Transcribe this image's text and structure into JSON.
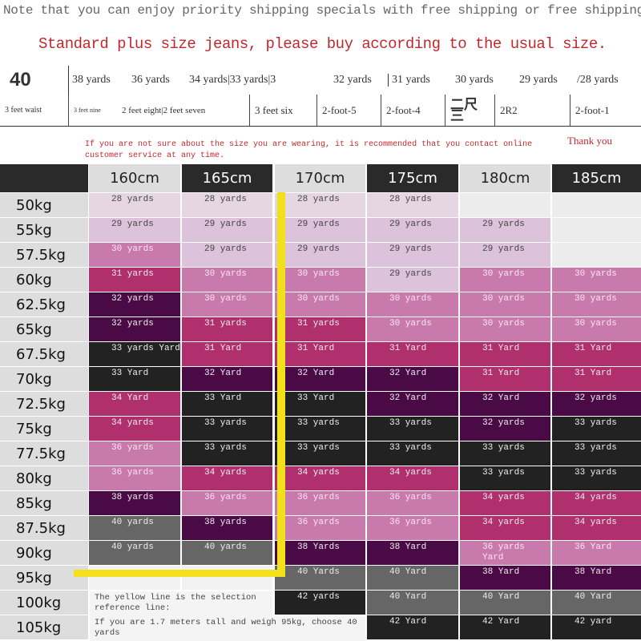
{
  "header": {
    "note": "Note that you can enjoy priority shipping specials with free shipping or free shipping",
    "standard": "Standard plus size jeans, please buy according to the usual size."
  },
  "sizes": [
    "40",
    "38 yards",
    "36 yards",
    "34 yards|33 yards|3",
    "32 yards",
    "31 yards",
    "30 yards",
    "29 yards",
    "/28 yards"
  ],
  "waists": [
    "3 feet waist",
    "3 feet nine",
    "2 feet eight|2 feet seven",
    "3 feet six",
    "2-foot-5",
    "2-foot-4",
    "二尺三",
    "2R2",
    "2-foot-1"
  ],
  "tip": "If you are not sure about the size you are wearing, it is recommended that you contact online customer service at any time.",
  "thanks": "Thank you",
  "heights": [
    "160cm",
    "165cm",
    "170cm",
    "175cm",
    "180cm",
    "185cm"
  ],
  "weights": [
    "50kg",
    "55kg",
    "57.5kg",
    "60kg",
    "62.5kg",
    "65kg",
    "67.5kg",
    "70kg",
    "72.5kg",
    "75kg",
    "77.5kg",
    "80kg",
    "85kg",
    "87.5kg",
    "90kg",
    "95kg",
    "100kg",
    "105kg"
  ],
  "colors": {
    "L1": "#e6d6e4",
    "L2": "#dcc2da",
    "P": "#c87aac",
    "M": "#b0306e",
    "D": "#4a0a45",
    "K": "#222222",
    "G": "#666666",
    "E": "#ececec",
    "yellow": "#f2e01a"
  },
  "columns": [
    [
      [
        "28 yards",
        "L1"
      ],
      [
        "29 yards",
        "L2"
      ],
      [
        "30 yards",
        "P"
      ],
      [
        "31 yards",
        "M"
      ],
      [
        "32 yards",
        "D"
      ],
      [
        "32 yards",
        "D"
      ],
      [
        "33 yards Yard",
        "K"
      ],
      [
        "33 Yard",
        "K"
      ],
      [
        "34 Yard",
        "M"
      ],
      [
        "34 yards",
        "M"
      ],
      [
        "36 yards",
        "P"
      ],
      [
        "36 yards",
        "P"
      ],
      [
        "38 yards",
        "D"
      ],
      [
        "40 yards",
        "G"
      ],
      [
        "40 yards",
        "G"
      ]
    ],
    [
      [
        "28 yards",
        "L1"
      ],
      [
        "29 yards",
        "L2"
      ],
      [
        "29 yards",
        "L2"
      ],
      [
        "30 yards",
        "P"
      ],
      [
        "30 yards",
        "P"
      ],
      [
        "31 yards",
        "M"
      ],
      [
        "31 Yard",
        "M"
      ],
      [
        "32 Yard",
        "D"
      ],
      [
        "33 Yard",
        "K"
      ],
      [
        "33 yards",
        "K"
      ],
      [
        "33 yards",
        "K"
      ],
      [
        "34 yards",
        "M"
      ],
      [
        "36 yards",
        "P"
      ],
      [
        "38 yards",
        "D"
      ],
      [
        "40 yards",
        "G"
      ]
    ],
    [
      [
        "28 yards",
        "L1"
      ],
      [
        "29 yards",
        "L2"
      ],
      [
        "29 yards",
        "L2"
      ],
      [
        "30 yards",
        "P"
      ],
      [
        "30 yards",
        "P"
      ],
      [
        "31 yards",
        "M"
      ],
      [
        "31 Yard",
        "M"
      ],
      [
        "32 Yard",
        "D"
      ],
      [
        "33 Yard",
        "K"
      ],
      [
        "33 yards",
        "K"
      ],
      [
        "33 yards",
        "K"
      ],
      [
        "34 yards",
        "M"
      ],
      [
        "36 yards",
        "P"
      ],
      [
        "36 yards",
        "P"
      ],
      [
        "38 Yards",
        "D"
      ],
      [
        "40 Yards",
        "G"
      ],
      [
        "42 yards",
        "K"
      ]
    ],
    [
      [
        "28 yards",
        "L1"
      ],
      [
        "29 yards",
        "L2"
      ],
      [
        "29 yards",
        "L2"
      ],
      [
        "29 yards",
        "L2"
      ],
      [
        "30 yards",
        "P"
      ],
      [
        "30 yards",
        "P"
      ],
      [
        "31 Yard",
        "M"
      ],
      [
        "32 Yard",
        "D"
      ],
      [
        "32 Yard",
        "D"
      ],
      [
        "33 yards",
        "K"
      ],
      [
        "33 yards",
        "K"
      ],
      [
        "34 yards",
        "M"
      ],
      [
        "36 yards",
        "P"
      ],
      [
        "36 yards",
        "P"
      ],
      [
        "38 Yard",
        "D"
      ],
      [
        "40 Yard",
        "G"
      ],
      [
        "40 Yard",
        "G"
      ],
      [
        "42 Yard",
        "K"
      ]
    ],
    [
      [
        "",
        "E"
      ],
      [
        "29 yards",
        "L2"
      ],
      [
        "29 yards",
        "L2"
      ],
      [
        "30 yards",
        "P"
      ],
      [
        "30 yards",
        "P"
      ],
      [
        "30 yards",
        "P"
      ],
      [
        "31 Yard",
        "M"
      ],
      [
        "31 Yard",
        "M"
      ],
      [
        "32 Yard",
        "D"
      ],
      [
        "32 yards",
        "D"
      ],
      [
        "33 yards",
        "K"
      ],
      [
        "33 yards",
        "K"
      ],
      [
        "34 yards",
        "M"
      ],
      [
        "34 yards",
        "M"
      ],
      [
        "36 yards Yard",
        "P"
      ],
      [
        "38 Yard",
        "D"
      ],
      [
        "40 Yard",
        "G"
      ],
      [
        "42 Yard",
        "K"
      ]
    ],
    [
      [
        "",
        "E"
      ],
      [
        "",
        "E"
      ],
      [
        "",
        "E"
      ],
      [
        "30 yards",
        "P"
      ],
      [
        "30 yards",
        "P"
      ],
      [
        "30 yards",
        "P"
      ],
      [
        "31 Yard",
        "M"
      ],
      [
        "31 Yard",
        "M"
      ],
      [
        "32 yards",
        "D"
      ],
      [
        "33 yards",
        "K"
      ],
      [
        "33 yards",
        "K"
      ],
      [
        "33 yards",
        "K"
      ],
      [
        "34 yards",
        "M"
      ],
      [
        "34 yards",
        "M"
      ],
      [
        "36 Yard",
        "P"
      ],
      [
        "38 Yard",
        "D"
      ],
      [
        "40 Yard",
        "G"
      ],
      [
        "42 yard",
        "K"
      ]
    ]
  ],
  "notes": {
    "yellow_line": "The yellow line is the selection reference line:",
    "example": "If you are 1.7 meters tall and weigh 95kg, choose 40 yards"
  }
}
